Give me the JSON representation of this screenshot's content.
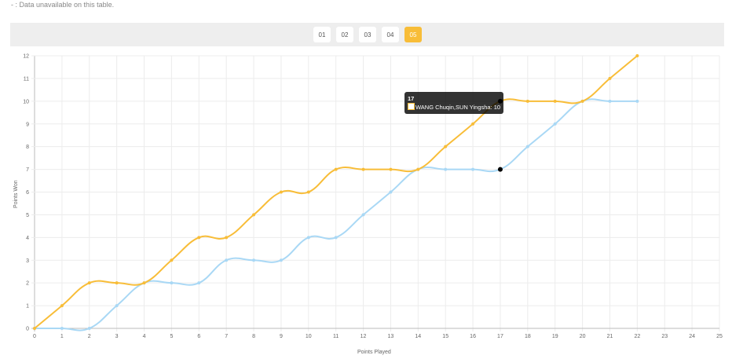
{
  "note": "- : Data unavailable on this table.",
  "sets": [
    {
      "label": "01",
      "active": false
    },
    {
      "label": "02",
      "active": false
    },
    {
      "label": "03",
      "active": false
    },
    {
      "label": "04",
      "active": false
    },
    {
      "label": "05",
      "active": true
    }
  ],
  "tooltip": {
    "title": "17",
    "label": "WANG Chuqin,SUN Yingsha: 10"
  },
  "chart_data": {
    "type": "line",
    "xlabel": "Points Played",
    "ylabel": "Points Won",
    "xlim": [
      0,
      25
    ],
    "ylim": [
      0,
      12
    ],
    "grid": true,
    "x": [
      0,
      1,
      2,
      3,
      4,
      5,
      6,
      7,
      8,
      9,
      10,
      11,
      12,
      13,
      14,
      15,
      16,
      17,
      18,
      19,
      20,
      21,
      22
    ],
    "series": [
      {
        "name": "WANG Chuqin,SUN Yingsha",
        "color": "#f8bd38",
        "values": [
          0,
          1,
          2,
          2,
          2,
          3,
          4,
          4,
          5,
          6,
          6,
          7,
          7,
          7,
          7,
          8,
          9,
          10,
          10,
          10,
          10,
          11,
          12
        ]
      },
      {
        "color": "#a9d8f5",
        "values": [
          0,
          0,
          0,
          1,
          2,
          2,
          2,
          3,
          3,
          3,
          4,
          4,
          5,
          6,
          7,
          7,
          7,
          7,
          8,
          9,
          10,
          10,
          10
        ]
      }
    ]
  }
}
